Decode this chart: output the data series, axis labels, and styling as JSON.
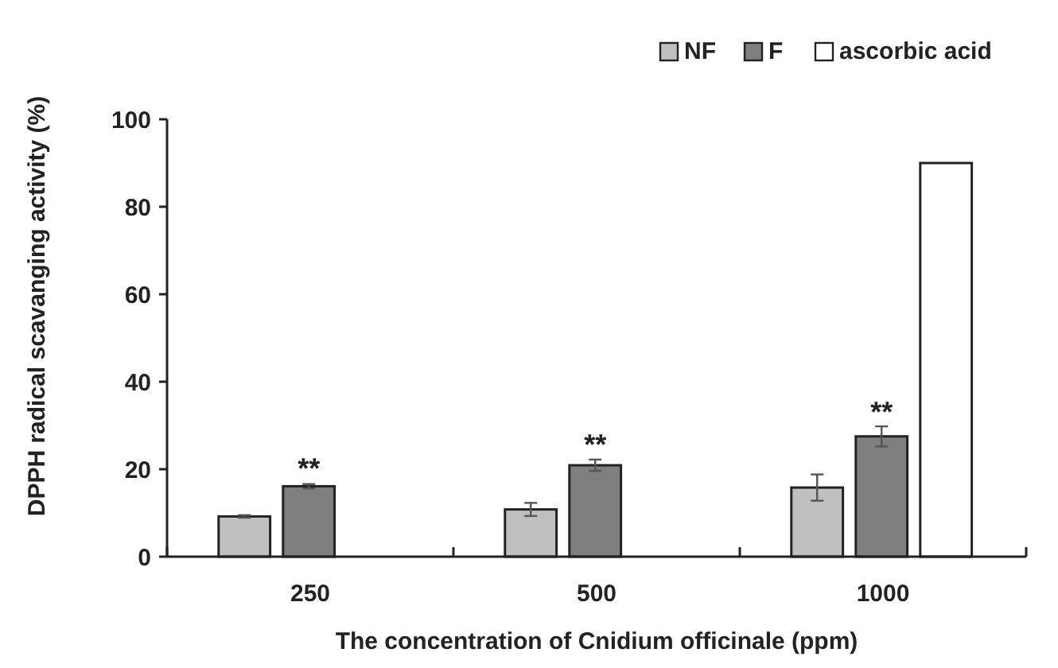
{
  "chart_data": {
    "type": "bar",
    "xlabel": "The concentration of Cnidium officinale (ppm)",
    "ylabel": "DPPH radical scavanging activity (%)",
    "categories": [
      "250",
      "500",
      "1000"
    ],
    "series": [
      {
        "name": "NF",
        "color": "#c0c0c0",
        "values": [
          9.2,
          10.8,
          15.8
        ],
        "errors": [
          0.3,
          1.5,
          3
        ]
      },
      {
        "name": "F",
        "color": "#7f7f7f",
        "values": [
          16.1,
          20.9,
          27.5
        ],
        "errors": [
          0.5,
          1.3,
          2.3
        ]
      },
      {
        "name": "ascorbic acid",
        "color": "#ffffff",
        "values": [
          null,
          null,
          90
        ]
      }
    ],
    "ylim": [
      0,
      100
    ],
    "yticks": [
      0,
      20,
      40,
      60,
      80,
      100
    ],
    "grid": false,
    "legend": "top right",
    "annotations": [
      {
        "text": "**",
        "x": "250",
        "y": 18
      },
      {
        "text": "**",
        "x": "500",
        "y": 23.5
      },
      {
        "text": "**",
        "x": "1000",
        "y": 31
      }
    ]
  }
}
